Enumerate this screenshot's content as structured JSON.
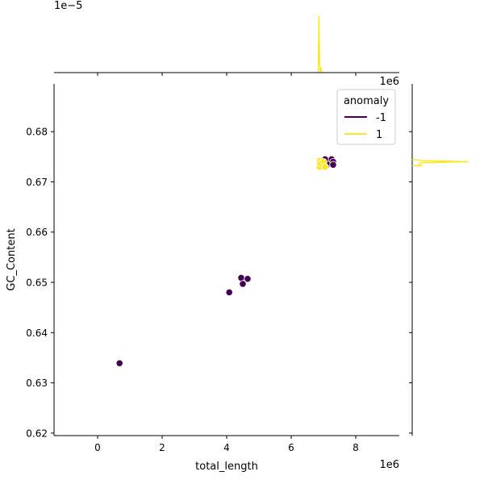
{
  "chart_data": {
    "type": "scatter",
    "xlabel": "total_length",
    "ylabel": "GC_Content",
    "x_scale_label": "1e6",
    "y_marg_scale_label": "1e6",
    "top_marg_scale_label": "1e−5",
    "xlim": [
      -1.35,
      9.35
    ],
    "ylim": [
      0.6195,
      0.6895
    ],
    "xticks": [
      0,
      2,
      4,
      6,
      8
    ],
    "yticks": [
      0.62,
      0.63,
      0.64,
      0.65,
      0.66,
      0.67,
      0.68
    ],
    "xtick_labels": [
      "0",
      "2",
      "4",
      "6",
      "8"
    ],
    "ytick_labels": [
      "0.62",
      "0.63",
      "0.64",
      "0.65",
      "0.66",
      "0.67",
      "0.68"
    ],
    "legend": {
      "title": "anomaly",
      "placement": "top-right",
      "entries": [
        {
          "label": "-1",
          "color": "#440154"
        },
        {
          "label": "1",
          "color": "#fde725"
        }
      ]
    },
    "series": [
      {
        "name": "-1",
        "color": "#440154",
        "points": [
          [
            0.68,
            0.6339
          ],
          [
            4.08,
            0.648
          ],
          [
            4.45,
            0.6509
          ],
          [
            4.65,
            0.6507
          ],
          [
            4.5,
            0.6497
          ],
          [
            7.0,
            0.6735
          ],
          [
            7.1,
            0.6733
          ],
          [
            7.15,
            0.6742
          ],
          [
            7.2,
            0.6738
          ],
          [
            7.25,
            0.6745
          ],
          [
            7.3,
            0.674
          ],
          [
            7.3,
            0.6734
          ],
          [
            7.05,
            0.6745
          ]
        ]
      },
      {
        "name": "1",
        "color": "#fde725",
        "points": [
          [
            6.88,
            0.673
          ],
          [
            6.88,
            0.6742
          ],
          [
            6.9,
            0.6737
          ],
          [
            7.0,
            0.674
          ],
          [
            7.05,
            0.673
          ]
        ]
      }
    ],
    "marginal_x": {
      "color": "#fde725",
      "x": [
        6.84,
        6.86,
        6.88,
        6.9,
        6.92,
        6.94
      ],
      "heights": [
        0.05,
        0.95,
        0.18,
        0.02,
        0.08,
        0.02
      ]
    },
    "marginal_y": {
      "color": "#fde725",
      "y": [
        0.6732,
        0.6734,
        0.6736,
        0.6738,
        0.674,
        0.6742,
        0.6744
      ],
      "widths": [
        0.18,
        0.12,
        0.12,
        0.15,
        1.0,
        0.2,
        0.05
      ]
    }
  }
}
